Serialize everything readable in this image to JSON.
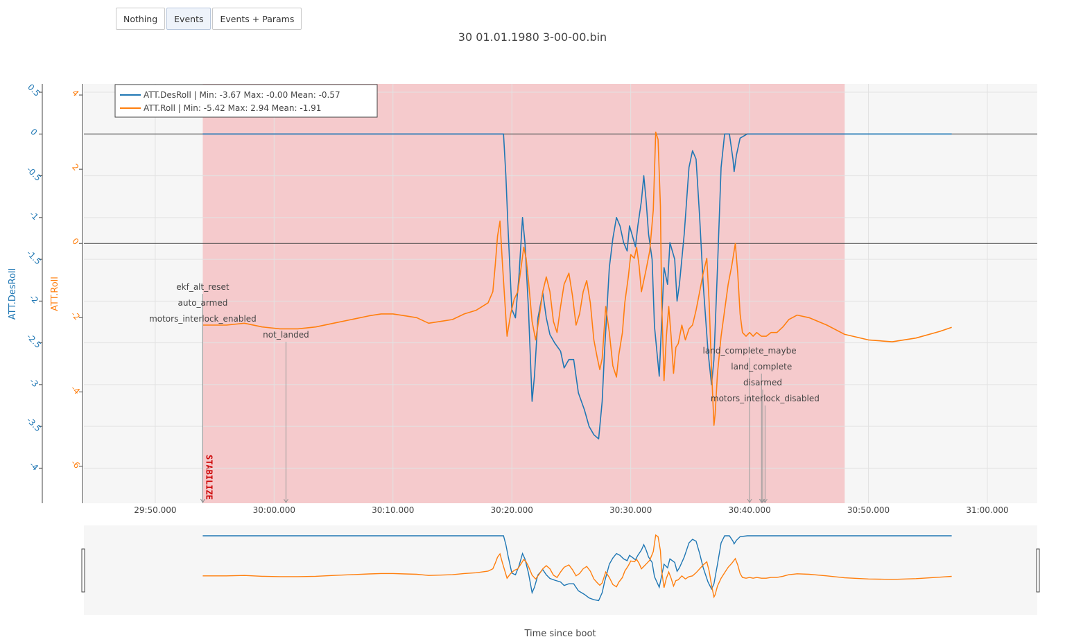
{
  "toolbar": {
    "buttons": [
      {
        "label": "Nothing",
        "active": false
      },
      {
        "label": "Events",
        "active": true
      },
      {
        "label": "Events + Params",
        "active": false
      }
    ]
  },
  "chart_data": {
    "type": "line",
    "title": "30 01.01.1980 3-00-00.bin",
    "xlabel": "Time since boot",
    "x_ticks": [
      "29:50.000",
      "30:00.000",
      "30:10.000",
      "30:20.000",
      "30:30.000",
      "30:40.000",
      "30:50.000",
      "31:00.000"
    ],
    "x_tick_values": [
      1790,
      1800,
      1810,
      1820,
      1830,
      1840,
      1850,
      1860
    ],
    "xlim": [
      1784.0,
      1864.2
    ],
    "y_axes": [
      {
        "label": "ATT.DesRoll",
        "color": "#1f77b4",
        "ticks": [
          0.5,
          0,
          -0.5,
          -1,
          -1.5,
          -2,
          -2.5,
          -3,
          -3.5,
          -4
        ],
        "range": [
          -4.42,
          0.6
        ]
      },
      {
        "label": "ATT.Roll",
        "color": "#ff7f0e",
        "ticks": [
          4,
          2,
          0,
          -2,
          -4,
          -6
        ],
        "range": [
          -7.0,
          4.3
        ]
      }
    ],
    "grid": true,
    "legend_position": "top-left",
    "series": [
      {
        "name": "ATT.DesRoll",
        "legend": "ATT.DesRoll | Min: -3.67     Max: -0.00     Mean: -0.57",
        "color": "#1f77b4",
        "axis": 0,
        "points": [
          [
            1794.0,
            0.0
          ],
          [
            1819.3,
            0.0
          ],
          [
            1819.5,
            -0.5
          ],
          [
            1819.7,
            -1.2
          ],
          [
            1820.0,
            -2.1
          ],
          [
            1820.3,
            -2.2
          ],
          [
            1820.6,
            -1.7
          ],
          [
            1820.9,
            -1.0
          ],
          [
            1821.1,
            -1.3
          ],
          [
            1821.4,
            -2.1
          ],
          [
            1821.7,
            -3.2
          ],
          [
            1821.9,
            -2.9
          ],
          [
            1822.2,
            -2.2
          ],
          [
            1822.6,
            -1.9
          ],
          [
            1822.9,
            -2.2
          ],
          [
            1823.2,
            -2.4
          ],
          [
            1823.6,
            -2.5
          ],
          [
            1824.1,
            -2.6
          ],
          [
            1824.4,
            -2.8
          ],
          [
            1824.8,
            -2.7
          ],
          [
            1825.2,
            -2.7
          ],
          [
            1825.6,
            -3.1
          ],
          [
            1826.1,
            -3.3
          ],
          [
            1826.5,
            -3.5
          ],
          [
            1826.9,
            -3.6
          ],
          [
            1827.3,
            -3.65
          ],
          [
            1827.6,
            -3.2
          ],
          [
            1827.8,
            -2.6
          ],
          [
            1828.0,
            -2.1
          ],
          [
            1828.2,
            -1.6
          ],
          [
            1828.5,
            -1.25
          ],
          [
            1828.8,
            -1.0
          ],
          [
            1829.1,
            -1.1
          ],
          [
            1829.4,
            -1.3
          ],
          [
            1829.7,
            -1.4
          ],
          [
            1829.9,
            -1.1
          ],
          [
            1830.1,
            -1.2
          ],
          [
            1830.4,
            -1.35
          ],
          [
            1830.6,
            -1.1
          ],
          [
            1830.9,
            -0.8
          ],
          [
            1831.1,
            -0.5
          ],
          [
            1831.3,
            -0.8
          ],
          [
            1831.5,
            -1.2
          ],
          [
            1831.8,
            -1.5
          ],
          [
            1832.0,
            -2.3
          ],
          [
            1832.4,
            -2.9
          ],
          [
            1832.8,
            -1.6
          ],
          [
            1833.1,
            -1.8
          ],
          [
            1833.3,
            -1.3
          ],
          [
            1833.7,
            -1.5
          ],
          [
            1833.9,
            -2.0
          ],
          [
            1834.1,
            -1.8
          ],
          [
            1834.5,
            -1.2
          ],
          [
            1834.9,
            -0.4
          ],
          [
            1835.2,
            -0.2
          ],
          [
            1835.5,
            -0.3
          ],
          [
            1835.8,
            -1.0
          ],
          [
            1836.1,
            -1.8
          ],
          [
            1836.5,
            -2.6
          ],
          [
            1836.8,
            -3.0
          ],
          [
            1837.0,
            -2.7
          ],
          [
            1837.3,
            -1.6
          ],
          [
            1837.6,
            -0.4
          ],
          [
            1837.9,
            0.0
          ],
          [
            1838.3,
            0.0
          ],
          [
            1838.6,
            -0.3
          ],
          [
            1838.7,
            -0.45
          ],
          [
            1838.9,
            -0.25
          ],
          [
            1839.2,
            -0.05
          ],
          [
            1839.8,
            0.0
          ],
          [
            1848.0,
            0.0
          ],
          [
            1857.0,
            0.0
          ]
        ]
      },
      {
        "name": "ATT.Roll",
        "legend": "ATT.Roll | Min: -5.42     Max: 2.94     Mean: -1.91",
        "color": "#ff7f0e",
        "axis": 1,
        "points": [
          [
            1794.0,
            -2.2
          ],
          [
            1796.0,
            -2.2
          ],
          [
            1797.5,
            -2.15
          ],
          [
            1799.0,
            -2.25
          ],
          [
            1800.5,
            -2.3
          ],
          [
            1802.0,
            -2.3
          ],
          [
            1803.5,
            -2.25
          ],
          [
            1805.0,
            -2.15
          ],
          [
            1806.5,
            -2.05
          ],
          [
            1808.0,
            -1.95
          ],
          [
            1809.0,
            -1.9
          ],
          [
            1810.0,
            -1.9
          ],
          [
            1811.0,
            -1.95
          ],
          [
            1812.0,
            -2.0
          ],
          [
            1813.0,
            -2.15
          ],
          [
            1814.0,
            -2.1
          ],
          [
            1815.0,
            -2.05
          ],
          [
            1816.0,
            -1.9
          ],
          [
            1817.0,
            -1.8
          ],
          [
            1818.0,
            -1.6
          ],
          [
            1818.4,
            -1.3
          ],
          [
            1818.6,
            -0.6
          ],
          [
            1818.8,
            0.2
          ],
          [
            1819.0,
            0.6
          ],
          [
            1819.2,
            -0.5
          ],
          [
            1819.4,
            -1.5
          ],
          [
            1819.6,
            -2.5
          ],
          [
            1819.9,
            -1.9
          ],
          [
            1820.2,
            -1.5
          ],
          [
            1820.5,
            -1.3
          ],
          [
            1820.8,
            -0.6
          ],
          [
            1821.0,
            -0.1
          ],
          [
            1821.2,
            -0.4
          ],
          [
            1821.4,
            -1.0
          ],
          [
            1821.7,
            -2.1
          ],
          [
            1822.0,
            -2.6
          ],
          [
            1822.3,
            -2.0
          ],
          [
            1822.6,
            -1.3
          ],
          [
            1822.9,
            -0.9
          ],
          [
            1823.2,
            -1.3
          ],
          [
            1823.5,
            -2.1
          ],
          [
            1823.8,
            -2.4
          ],
          [
            1824.1,
            -1.7
          ],
          [
            1824.4,
            -1.1
          ],
          [
            1824.8,
            -0.8
          ],
          [
            1825.1,
            -1.4
          ],
          [
            1825.4,
            -2.2
          ],
          [
            1825.7,
            -1.9
          ],
          [
            1826.0,
            -1.3
          ],
          [
            1826.3,
            -1.0
          ],
          [
            1826.6,
            -1.6
          ],
          [
            1826.9,
            -2.6
          ],
          [
            1827.2,
            -3.1
          ],
          [
            1827.4,
            -3.4
          ],
          [
            1827.6,
            -3.1
          ],
          [
            1827.9,
            -1.7
          ],
          [
            1828.2,
            -2.4
          ],
          [
            1828.5,
            -3.3
          ],
          [
            1828.8,
            -3.6
          ],
          [
            1829.0,
            -3.0
          ],
          [
            1829.3,
            -2.4
          ],
          [
            1829.5,
            -1.6
          ],
          [
            1829.8,
            -0.9
          ],
          [
            1830.0,
            -0.3
          ],
          [
            1830.3,
            -0.4
          ],
          [
            1830.5,
            -0.1
          ],
          [
            1830.7,
            -0.6
          ],
          [
            1830.9,
            -1.3
          ],
          [
            1831.1,
            -1.0
          ],
          [
            1831.3,
            -0.7
          ],
          [
            1831.6,
            -0.2
          ],
          [
            1831.9,
            0.9
          ],
          [
            1832.1,
            3.0
          ],
          [
            1832.3,
            2.8
          ],
          [
            1832.5,
            1.0
          ],
          [
            1832.6,
            -1.5
          ],
          [
            1832.8,
            -3.7
          ],
          [
            1833.0,
            -2.5
          ],
          [
            1833.2,
            -1.7
          ],
          [
            1833.4,
            -2.5
          ],
          [
            1833.6,
            -3.5
          ],
          [
            1833.8,
            -2.8
          ],
          [
            1834.0,
            -2.7
          ],
          [
            1834.3,
            -2.2
          ],
          [
            1834.6,
            -2.6
          ],
          [
            1834.9,
            -2.3
          ],
          [
            1835.2,
            -2.2
          ],
          [
            1835.5,
            -1.8
          ],
          [
            1835.8,
            -1.3
          ],
          [
            1836.1,
            -0.8
          ],
          [
            1836.4,
            -0.4
          ],
          [
            1836.6,
            -1.6
          ],
          [
            1836.8,
            -3.4
          ],
          [
            1837.0,
            -4.9
          ],
          [
            1837.1,
            -4.6
          ],
          [
            1837.3,
            -3.5
          ],
          [
            1837.6,
            -2.5
          ],
          [
            1837.9,
            -1.8
          ],
          [
            1838.2,
            -1.1
          ],
          [
            1838.5,
            -0.6
          ],
          [
            1838.8,
            0.0
          ],
          [
            1839.0,
            -0.8
          ],
          [
            1839.2,
            -1.9
          ],
          [
            1839.4,
            -2.4
          ],
          [
            1839.7,
            -2.5
          ],
          [
            1840.0,
            -2.4
          ],
          [
            1840.3,
            -2.5
          ],
          [
            1840.6,
            -2.4
          ],
          [
            1841.0,
            -2.5
          ],
          [
            1841.4,
            -2.5
          ],
          [
            1841.8,
            -2.4
          ],
          [
            1842.3,
            -2.4
          ],
          [
            1842.8,
            -2.25
          ],
          [
            1843.3,
            -2.05
          ],
          [
            1844.0,
            -1.93
          ],
          [
            1845.0,
            -2.0
          ],
          [
            1846.5,
            -2.2
          ],
          [
            1848.0,
            -2.45
          ],
          [
            1850.0,
            -2.6
          ],
          [
            1852.0,
            -2.65
          ],
          [
            1854.0,
            -2.55
          ],
          [
            1856.0,
            -2.37
          ],
          [
            1857.0,
            -2.26
          ]
        ]
      }
    ],
    "mode_band": {
      "label": "STABILIZE",
      "x_start": 1794.0,
      "x_end": 1848.0,
      "color": "#f5c2c4"
    },
    "events": [
      {
        "label": "ekf_alt_reset",
        "x": 1794.0,
        "y_row": 0
      },
      {
        "label": "auto_armed",
        "x": 1794.0,
        "y_row": 1
      },
      {
        "label": "motors_interlock_enabled",
        "x": 1794.0,
        "y_row": 2
      },
      {
        "label": "not_landed",
        "x": 1801.0,
        "y_row": 3
      },
      {
        "label": "land_complete_maybe",
        "x": 1840.0,
        "y_row": 0
      },
      {
        "label": "land_complete",
        "x": 1841.0,
        "y_row": 1
      },
      {
        "label": "disarmed",
        "x": 1841.1,
        "y_row": 2
      },
      {
        "label": "motors_interlock_disabled",
        "x": 1841.3,
        "y_row": 3
      }
    ]
  }
}
